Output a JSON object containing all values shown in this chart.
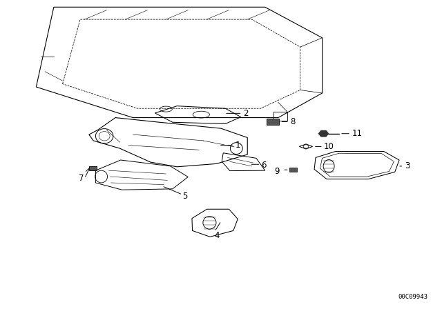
{
  "background_color": "#ffffff",
  "diagram_code": "00C09943",
  "line_color": "#000000",
  "text_color": "#000000",
  "fig_width": 6.4,
  "fig_height": 4.48,
  "dpi": 100
}
